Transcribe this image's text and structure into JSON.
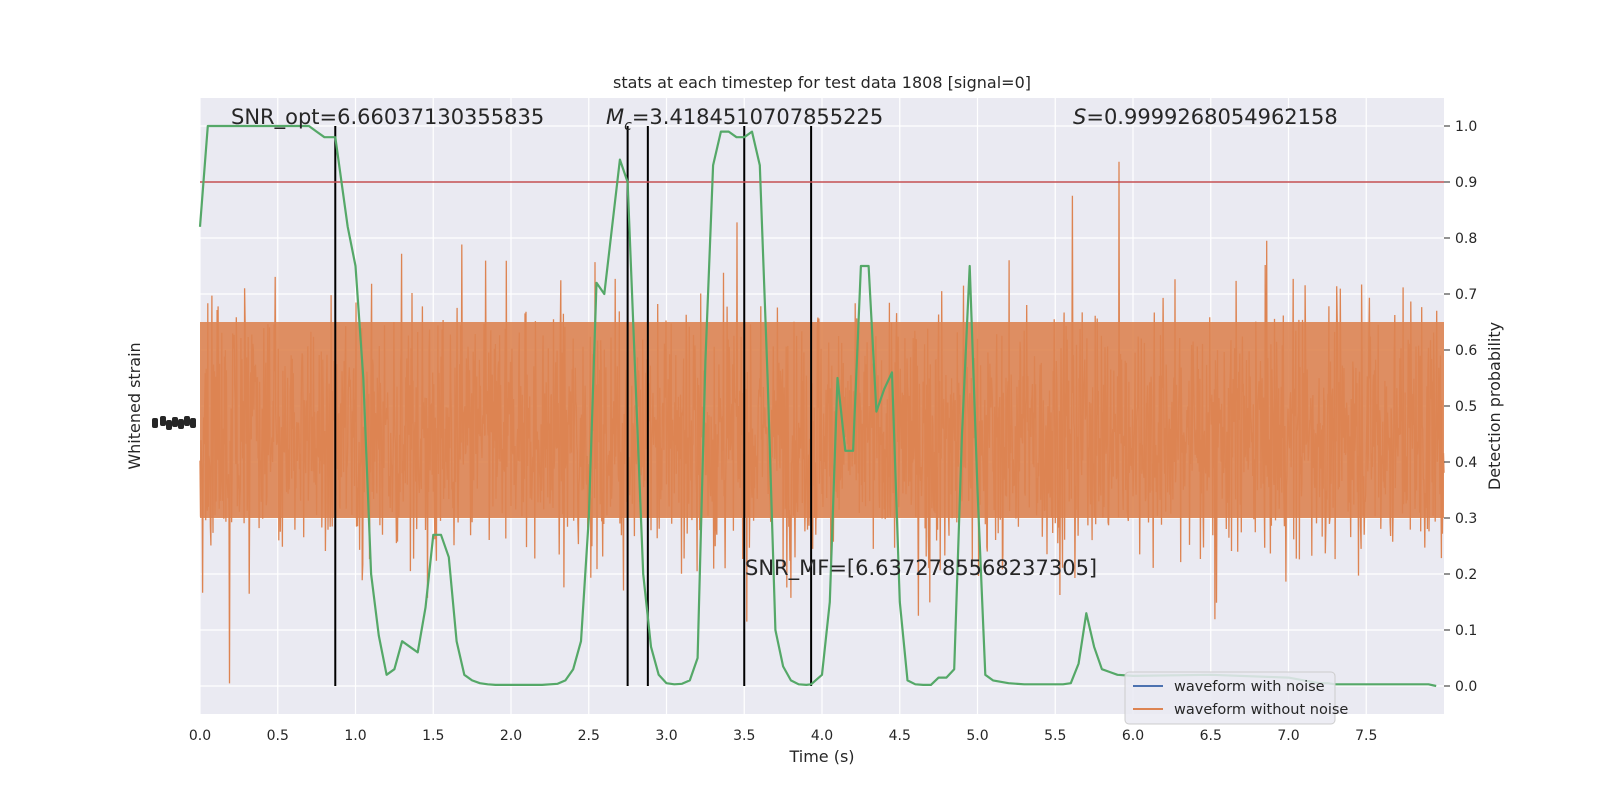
{
  "chart_data": {
    "type": "line",
    "title": "stats at each timestep for test data 1808 [signal=0]",
    "xlabel": "Time (s)",
    "ylabel_left": "Whitened strain",
    "ylabel_right": "Detection probability",
    "xlim": [
      0,
      8
    ],
    "ylim_right": [
      -0.05,
      1.05
    ],
    "x_ticks": [
      "0.0",
      "0.5",
      "1.0",
      "1.5",
      "2.0",
      "2.5",
      "3.0",
      "3.5",
      "4.0",
      "4.5",
      "5.0",
      "5.5",
      "6.0",
      "6.5",
      "7.0",
      "7.5"
    ],
    "y_right_ticks": [
      "0.0",
      "0.1",
      "0.2",
      "0.3",
      "0.4",
      "0.5",
      "0.6",
      "0.7",
      "0.8",
      "0.9",
      "1.0"
    ],
    "threshold": 0.9,
    "vertical_markers": [
      0.87,
      2.75,
      2.88,
      3.5,
      3.93
    ],
    "annotations": {
      "snr_opt": "SNR_opt=6.66037130355835",
      "mc_symbol": "M",
      "mc_sub": "c",
      "mc_value": "=3.4184510707855225",
      "s_symbol": "S",
      "s_value": "=0.9999268054962158",
      "snr_mf": "SNR_MF=[6.6372785568237305]"
    },
    "legend": [
      "waveform with noise",
      "waveform without noise"
    ],
    "colors": {
      "background": "#eaeaf2",
      "grid": "#ffffff",
      "noise_waveform": "#dd8452",
      "clean_waveform": "#4c72b0",
      "probability": "#55a868",
      "threshold": "#c44e52",
      "markers": "#000000"
    },
    "series": [
      {
        "name": "Detection probability",
        "x": [
          0.0,
          0.05,
          0.1,
          0.2,
          0.3,
          0.4,
          0.5,
          0.6,
          0.7,
          0.75,
          0.8,
          0.87,
          0.95,
          1.0,
          1.05,
          1.1,
          1.15,
          1.2,
          1.25,
          1.3,
          1.35,
          1.4,
          1.45,
          1.5,
          1.55,
          1.6,
          1.65,
          1.7,
          1.75,
          1.8,
          1.85,
          1.9,
          1.95,
          2.0,
          2.1,
          2.2,
          2.3,
          2.35,
          2.4,
          2.45,
          2.5,
          2.55,
          2.6,
          2.65,
          2.7,
          2.75,
          2.8,
          2.85,
          2.9,
          2.95,
          3.0,
          3.05,
          3.1,
          3.15,
          3.2,
          3.25,
          3.3,
          3.35,
          3.4,
          3.45,
          3.5,
          3.55,
          3.6,
          3.65,
          3.7,
          3.75,
          3.8,
          3.85,
          3.9,
          3.93,
          4.0,
          4.05,
          4.1,
          4.15,
          4.2,
          4.25,
          4.3,
          4.35,
          4.4,
          4.45,
          4.5,
          4.55,
          4.6,
          4.65,
          4.7,
          4.75,
          4.8,
          4.85,
          4.9,
          4.95,
          5.0,
          5.05,
          5.1,
          5.2,
          5.3,
          5.4,
          5.5,
          5.55,
          5.6,
          5.65,
          5.7,
          5.75,
          5.8,
          5.85,
          5.9,
          6.0,
          6.5,
          7.0,
          7.1,
          7.2,
          7.25,
          7.3,
          7.35,
          7.4,
          7.45,
          7.5,
          7.6,
          7.7,
          7.8,
          7.9,
          7.95
        ],
        "values": [
          0.82,
          1.0,
          1.0,
          1.0,
          1.0,
          1.0,
          1.0,
          1.0,
          1.0,
          0.99,
          0.98,
          0.98,
          0.82,
          0.75,
          0.55,
          0.2,
          0.09,
          0.02,
          0.03,
          0.08,
          0.07,
          0.06,
          0.14,
          0.27,
          0.27,
          0.23,
          0.08,
          0.02,
          0.01,
          0.005,
          0.003,
          0.002,
          0.002,
          0.002,
          0.002,
          0.002,
          0.004,
          0.01,
          0.03,
          0.08,
          0.3,
          0.72,
          0.7,
          0.82,
          0.94,
          0.9,
          0.55,
          0.2,
          0.07,
          0.02,
          0.005,
          0.003,
          0.004,
          0.01,
          0.05,
          0.58,
          0.93,
          0.99,
          0.99,
          0.98,
          0.98,
          0.99,
          0.93,
          0.55,
          0.1,
          0.035,
          0.01,
          0.003,
          0.002,
          0.003,
          0.02,
          0.15,
          0.55,
          0.42,
          0.42,
          0.75,
          0.75,
          0.49,
          0.53,
          0.56,
          0.15,
          0.01,
          0.003,
          0.002,
          0.002,
          0.015,
          0.015,
          0.03,
          0.45,
          0.75,
          0.35,
          0.02,
          0.01,
          0.005,
          0.003,
          0.003,
          0.003,
          0.003,
          0.005,
          0.04,
          0.13,
          0.07,
          0.03,
          0.025,
          0.02,
          0.018,
          0.02,
          0.015,
          0.01,
          0.005,
          0.005,
          0.003,
          0.003,
          0.003,
          0.003,
          0.003,
          0.003,
          0.003,
          0.003,
          0.003,
          0.0
        ]
      }
    ]
  }
}
